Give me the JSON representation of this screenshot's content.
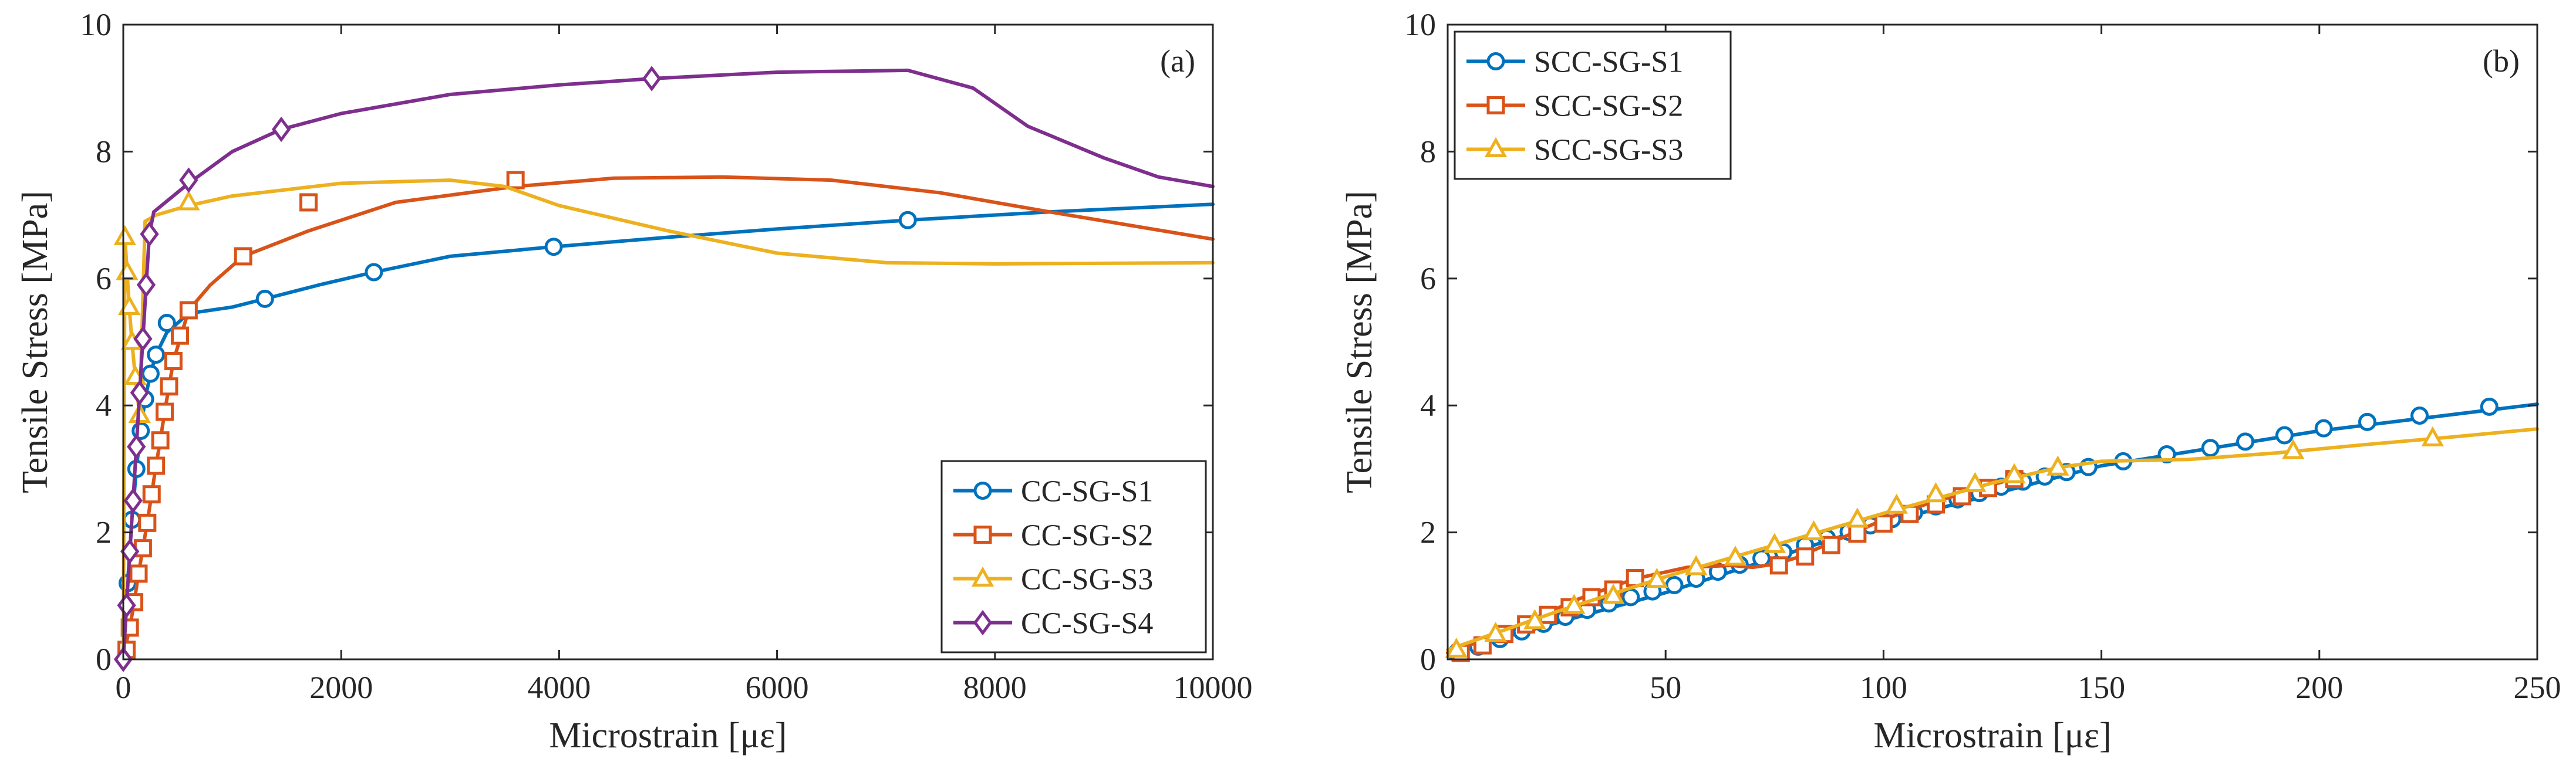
{
  "chart_data": [
    {
      "type": "line",
      "panel_label": "(a)",
      "xlabel": "Microstrain [με]",
      "ylabel": "Tensile Stress [MPa]",
      "xlim": [
        0,
        10000
      ],
      "ylim": [
        0,
        10
      ],
      "xticks": [
        0,
        2000,
        4000,
        6000,
        8000,
        10000
      ],
      "yticks": [
        0,
        2,
        4,
        6,
        8,
        10
      ],
      "grid": false,
      "legend_position": "bottom-right",
      "series": [
        {
          "name": "CC-SG-S1",
          "color": "#0072BD",
          "marker": "circle",
          "x": [
            0,
            40,
            80,
            120,
            160,
            200,
            250,
            300,
            400,
            500,
            600,
            800,
            1000,
            1300,
            1800,
            2300,
            3000,
            3950,
            5000,
            6000,
            7200,
            8500,
            10000
          ],
          "y": [
            0,
            1.2,
            2.2,
            3.0,
            3.6,
            4.1,
            4.5,
            4.8,
            5.15,
            5.3,
            5.45,
            5.5,
            5.55,
            5.68,
            5.9,
            6.1,
            6.35,
            6.5,
            6.65,
            6.78,
            6.92,
            7.05,
            7.17
          ],
          "marker_x": [
            40,
            80,
            120,
            160,
            200,
            250,
            300,
            400,
            1300,
            2300,
            3950,
            7200
          ],
          "marker_y": [
            1.2,
            2.2,
            3.0,
            3.6,
            4.1,
            4.5,
            4.8,
            5.3,
            5.68,
            6.1,
            6.5,
            6.92
          ]
        },
        {
          "name": "CC-SG-S2",
          "color": "#D95319",
          "marker": "square",
          "x": [
            0,
            60,
            100,
            140,
            180,
            220,
            260,
            300,
            340,
            380,
            420,
            460,
            600,
            800,
            1100,
            1700,
            2500,
            3600,
            4500,
            5500,
            6500,
            7500,
            8500,
            10000
          ],
          "y": [
            0.05,
            0.5,
            0.9,
            1.35,
            1.75,
            2.15,
            2.6,
            3.05,
            3.45,
            3.9,
            4.3,
            4.7,
            5.5,
            5.9,
            6.35,
            6.75,
            7.2,
            7.45,
            7.58,
            7.6,
            7.55,
            7.35,
            7.05,
            6.62
          ],
          "marker_x": [
            30,
            60,
            100,
            140,
            180,
            220,
            260,
            300,
            340,
            380,
            420,
            460,
            520,
            600,
            1100,
            1700,
            3600
          ],
          "marker_y": [
            0.15,
            0.5,
            0.9,
            1.35,
            1.75,
            2.15,
            2.6,
            3.05,
            3.45,
            3.9,
            4.3,
            4.7,
            5.1,
            5.5,
            6.35,
            7.2,
            7.55
          ]
        },
        {
          "name": "CC-SG-S3",
          "color": "#EDB120",
          "marker": "triangle",
          "x": [
            0,
            15,
            35,
            55,
            80,
            110,
            150,
            200,
            300,
            600,
            1000,
            2000,
            3000,
            3500,
            4000,
            5000,
            6000,
            7000,
            8000,
            10000
          ],
          "y": [
            0,
            6.65,
            6.1,
            5.55,
            5.0,
            4.45,
            3.85,
            6.9,
            7.0,
            7.15,
            7.3,
            7.5,
            7.55,
            7.45,
            7.15,
            6.75,
            6.4,
            6.25,
            6.23,
            6.25
          ],
          "marker_x": [
            15,
            35,
            55,
            80,
            110,
            150,
            600
          ],
          "marker_y": [
            6.65,
            6.1,
            5.55,
            5.0,
            4.45,
            3.85,
            7.2
          ]
        },
        {
          "name": "CC-SG-S4",
          "color": "#7E2F8E",
          "marker": "diamond",
          "x": [
            0,
            30,
            60,
            90,
            120,
            150,
            180,
            210,
            240,
            280,
            600,
            1000,
            1450,
            2000,
            3000,
            4000,
            4850,
            6000,
            7200,
            7800,
            8300,
            9000,
            9500,
            10000
          ],
          "y": [
            0,
            0.85,
            1.7,
            2.5,
            3.35,
            4.2,
            5.05,
            5.9,
            6.7,
            7.05,
            7.5,
            8.0,
            8.35,
            8.6,
            8.9,
            9.05,
            9.15,
            9.25,
            9.28,
            9.0,
            8.4,
            7.9,
            7.6,
            7.45
          ],
          "marker_x": [
            0,
            30,
            60,
            90,
            120,
            150,
            180,
            210,
            240,
            600,
            1450,
            4850
          ],
          "marker_y": [
            0,
            0.85,
            1.7,
            2.5,
            3.35,
            4.2,
            5.05,
            5.9,
            6.7,
            7.55,
            8.35,
            9.15
          ]
        }
      ]
    },
    {
      "type": "line",
      "panel_label": "(b)",
      "xlabel": "Microstrain [με]",
      "ylabel": "Tensile Stress [MPa]",
      "xlim": [
        0,
        250
      ],
      "ylim": [
        0,
        10
      ],
      "xticks": [
        0,
        50,
        100,
        150,
        200,
        250
      ],
      "yticks": [
        0,
        2,
        4,
        6,
        8,
        10
      ],
      "grid": false,
      "legend_position": "top-left",
      "series": [
        {
          "name": "SCC-SG-S1",
          "color": "#0072BD",
          "marker": "circle",
          "x": [
            0,
            50,
            100,
            150,
            200,
            250
          ],
          "y": [
            0.1,
            1.05,
            2.15,
            3.05,
            3.6,
            4.02
          ],
          "marker_x": [
            2,
            7,
            12,
            17,
            22,
            27,
            32,
            37,
            42,
            47,
            52,
            57,
            62,
            67,
            72,
            77,
            82,
            87,
            92,
            97,
            102,
            107,
            112,
            117,
            122,
            127,
            132,
            137,
            142,
            147,
            155,
            165,
            175,
            183,
            192,
            201,
            211,
            223,
            239
          ],
          "marker_y": [
            0.1,
            0.2,
            0.32,
            0.44,
            0.56,
            0.67,
            0.78,
            0.88,
            0.98,
            1.07,
            1.17,
            1.27,
            1.38,
            1.49,
            1.59,
            1.69,
            1.8,
            1.91,
            2.01,
            2.11,
            2.21,
            2.31,
            2.41,
            2.52,
            2.62,
            2.72,
            2.8,
            2.88,
            2.95,
            3.03,
            3.12,
            3.23,
            3.33,
            3.43,
            3.53,
            3.64,
            3.74,
            3.84,
            3.98
          ]
        },
        {
          "name": "SCC-SG-S2",
          "color": "#D95319",
          "marker": "square",
          "x": [
            0,
            10,
            20,
            30,
            40,
            45,
            55,
            65,
            70,
            75,
            80,
            90,
            100,
            110,
            120,
            130
          ],
          "y": [
            0.1,
            0.35,
            0.65,
            0.95,
            1.2,
            1.3,
            1.45,
            1.48,
            1.45,
            1.5,
            1.6,
            1.9,
            2.2,
            2.45,
            2.65,
            2.85
          ],
          "marker_x": [
            3,
            8,
            13,
            18,
            23,
            28,
            33,
            38,
            43,
            76,
            82,
            88,
            94,
            100,
            106,
            112,
            118,
            124,
            130
          ],
          "marker_y": [
            0.1,
            0.22,
            0.4,
            0.55,
            0.7,
            0.82,
            0.98,
            1.1,
            1.28,
            1.48,
            1.62,
            1.8,
            1.98,
            2.14,
            2.29,
            2.44,
            2.57,
            2.7,
            2.84
          ]
        },
        {
          "name": "SCC-SG-S3",
          "color": "#EDB120",
          "marker": "triangle",
          "x": [
            0,
            25,
            50,
            75,
            100,
            125,
            140,
            150,
            170,
            190,
            210,
            230,
            250
          ],
          "y": [
            0.15,
            0.75,
            1.3,
            1.8,
            2.3,
            2.78,
            3.02,
            3.12,
            3.15,
            3.25,
            3.38,
            3.5,
            3.63
          ],
          "marker_x": [
            2,
            11,
            20,
            29,
            38,
            48,
            57,
            66,
            75,
            84,
            94,
            103,
            112,
            121,
            130,
            140,
            194,
            226
          ],
          "marker_y": [
            0.15,
            0.4,
            0.6,
            0.84,
            1.0,
            1.25,
            1.45,
            1.6,
            1.8,
            2.0,
            2.2,
            2.42,
            2.6,
            2.76,
            2.9,
            3.02,
            3.28,
            3.48
          ]
        }
      ]
    }
  ]
}
